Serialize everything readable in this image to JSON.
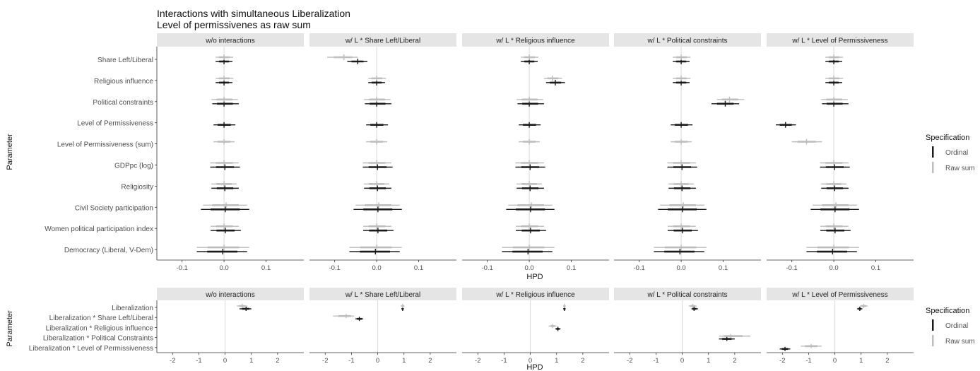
{
  "figure": {
    "title": "Interactions with simultaneous Liberalization",
    "subtitle": "Level of permissivenes as raw sum",
    "ylabel": "Parameter",
    "xlabel": "HPD"
  },
  "legend": {
    "title": "Specification",
    "items": [
      {
        "label": "Ordinal",
        "color": "#1a1a1a"
      },
      {
        "label": "Raw sum",
        "color": "#bdbdbd"
      }
    ]
  },
  "chart_data": [
    {
      "type": "interval",
      "panels": [
        "w/o interactions",
        "w/ L * Share Left/Liberal",
        "w/ L * Religious influence",
        "w/ L * Political constraints",
        "w/ L * Level of Permissiveness"
      ],
      "parameters": [
        "Share Left/Liberal",
        "Religious influence",
        "Political constraints",
        "Level of Permissiveness",
        "Level of Permissiveness (sum)",
        "GDPpc (log)",
        "Religiosity",
        "Civil Society participation",
        "Women political participation index",
        "Democracy (Liberal, V-Dem)"
      ],
      "xlim": [
        -0.16,
        0.19
      ],
      "xticks": [
        -0.1,
        0.0,
        0.1
      ],
      "xtick_labels": [
        "-0.1",
        "0.0",
        "0.1"
      ],
      "series": [
        {
          "name": "Ordinal",
          "intervals": [
            [
              [
                0,
                -0.02,
                0.02
              ],
              [
                0,
                -0.02,
                0.02
              ],
              [
                0,
                -0.028,
                0.035
              ],
              [
                0,
                -0.025,
                0.027
              ],
              null,
              [
                0.002,
                -0.033,
                0.038
              ],
              [
                0.002,
                -0.03,
                0.035
              ],
              [
                0.003,
                -0.055,
                0.06
              ],
              [
                0.003,
                -0.032,
                0.04
              ],
              [
                -0.003,
                -0.065,
                0.055
              ]
            ],
            [
              [
                -0.045,
                -0.07,
                -0.022
              ],
              [
                0,
                -0.02,
                0.02
              ],
              [
                0,
                -0.028,
                0.035
              ],
              [
                0,
                -0.025,
                0.027
              ],
              null,
              [
                0.002,
                -0.033,
                0.038
              ],
              [
                0.002,
                -0.03,
                0.035
              ],
              [
                0.003,
                -0.055,
                0.06
              ],
              [
                0.003,
                -0.032,
                0.04
              ],
              [
                -0.003,
                -0.065,
                0.055
              ]
            ],
            [
              [
                0,
                -0.02,
                0.02
              ],
              [
                0.062,
                0.04,
                0.085
              ],
              [
                0,
                -0.028,
                0.035
              ],
              [
                0,
                -0.025,
                0.027
              ],
              null,
              [
                0.002,
                -0.033,
                0.038
              ],
              [
                0.002,
                -0.03,
                0.035
              ],
              [
                0.003,
                -0.055,
                0.06
              ],
              [
                0.003,
                -0.032,
                0.04
              ],
              [
                -0.003,
                -0.065,
                0.055
              ]
            ],
            [
              [
                0,
                -0.02,
                0.02
              ],
              [
                0,
                -0.02,
                0.02
              ],
              [
                0.105,
                0.072,
                0.138
              ],
              [
                0,
                -0.025,
                0.027
              ],
              null,
              [
                0.002,
                -0.033,
                0.038
              ],
              [
                0.002,
                -0.03,
                0.035
              ],
              [
                0.003,
                -0.055,
                0.06
              ],
              [
                0.003,
                -0.032,
                0.04
              ],
              [
                -0.003,
                -0.065,
                0.055
              ]
            ],
            [
              [
                0,
                -0.02,
                0.02
              ],
              [
                0,
                -0.02,
                0.02
              ],
              [
                0,
                -0.028,
                0.035
              ],
              [
                -0.115,
                -0.138,
                -0.09
              ],
              null,
              [
                0.002,
                -0.033,
                0.038
              ],
              [
                0.002,
                -0.03,
                0.035
              ],
              [
                0.003,
                -0.055,
                0.06
              ],
              [
                0.003,
                -0.032,
                0.04
              ],
              [
                -0.003,
                -0.065,
                0.055
              ]
            ]
          ]
        },
        {
          "name": "Raw sum",
          "intervals": [
            [
              [
                0,
                -0.02,
                0.022
              ],
              [
                0,
                -0.02,
                0.022
              ],
              [
                0,
                -0.03,
                0.033
              ],
              null,
              [
                0,
                -0.025,
                0.025
              ],
              [
                0,
                -0.033,
                0.035
              ],
              [
                0,
                -0.03,
                0.03
              ],
              [
                0.005,
                -0.05,
                0.055
              ],
              [
                0,
                -0.032,
                0.035
              ],
              [
                0,
                -0.065,
                0.06
              ]
            ],
            [
              [
                -0.078,
                -0.118,
                -0.045
              ],
              [
                0,
                -0.02,
                0.022
              ],
              [
                0,
                -0.03,
                0.033
              ],
              null,
              [
                0,
                -0.025,
                0.025
              ],
              [
                0,
                -0.033,
                0.035
              ],
              [
                0,
                -0.03,
                0.03
              ],
              [
                0.005,
                -0.05,
                0.055
              ],
              [
                0,
                -0.032,
                0.035
              ],
              [
                0,
                -0.065,
                0.06
              ]
            ],
            [
              [
                0,
                -0.02,
                0.022
              ],
              [
                0.055,
                0.035,
                0.078
              ],
              [
                0,
                -0.03,
                0.033
              ],
              null,
              [
                0,
                -0.025,
                0.025
              ],
              [
                0,
                -0.033,
                0.035
              ],
              [
                0,
                -0.03,
                0.03
              ],
              [
                0.005,
                -0.05,
                0.055
              ],
              [
                0,
                -0.032,
                0.035
              ],
              [
                0,
                -0.065,
                0.06
              ]
            ],
            [
              [
                0,
                -0.02,
                0.022
              ],
              [
                0,
                -0.02,
                0.022
              ],
              [
                0.115,
                0.085,
                0.15
              ],
              null,
              [
                0,
                -0.025,
                0.025
              ],
              [
                0,
                -0.033,
                0.035
              ],
              [
                0,
                -0.03,
                0.03
              ],
              [
                0.005,
                -0.05,
                0.055
              ],
              [
                0,
                -0.032,
                0.035
              ],
              [
                0,
                -0.065,
                0.06
              ]
            ],
            [
              [
                0,
                -0.02,
                0.022
              ],
              [
                0,
                -0.02,
                0.022
              ],
              [
                0,
                -0.03,
                0.033
              ],
              null,
              [
                -0.065,
                -0.1,
                -0.028
              ],
              [
                0,
                -0.033,
                0.035
              ],
              [
                0,
                -0.03,
                0.03
              ],
              [
                0.005,
                -0.05,
                0.055
              ],
              [
                0,
                -0.032,
                0.035
              ],
              [
                0,
                -0.065,
                0.06
              ]
            ]
          ]
        }
      ]
    },
    {
      "type": "interval",
      "panels": [
        "w/o interactions",
        "w/ L * Share Left/Liberal",
        "w/ L * Religious influence",
        "w/ L * Political constraints",
        "w/ L * Level of Permissiveness"
      ],
      "parameters": [
        "Liberalization",
        "Liberalization * Share Left/Liberal",
        "Liberalization * Religious influence",
        "Liberalization * Political Constraints",
        "Liberalization * Level of Permissiveness"
      ],
      "xlim": [
        -2.6,
        3.0
      ],
      "xticks": [
        -2,
        -1,
        0,
        1,
        2
      ],
      "xtick_labels": [
        "-2",
        "-1",
        "0",
        "1",
        "2"
      ],
      "series": [
        {
          "name": "Ordinal",
          "intervals": [
            [
              [
                0.8,
                0.55,
                1.0
              ],
              null,
              null,
              null,
              null
            ],
            [
              [
                0.95,
                0.9,
                1.0
              ],
              [
                -0.7,
                -0.85,
                -0.55
              ],
              null,
              null,
              null
            ],
            [
              [
                1.3,
                1.25,
                1.35
              ],
              null,
              [
                1.05,
                0.95,
                1.15
              ],
              null,
              null
            ],
            [
              [
                0.45,
                0.35,
                0.6
              ],
              null,
              null,
              [
                1.7,
                1.4,
                2.0
              ],
              null
            ],
            [
              [
                0.95,
                0.85,
                1.05
              ],
              null,
              null,
              null,
              [
                -1.9,
                -2.1,
                -1.7
              ]
            ]
          ]
        },
        {
          "name": "Raw sum",
          "intervals": [
            [
              [
                0.65,
                0.45,
                0.85
              ],
              null,
              null,
              null,
              null
            ],
            [
              [
                0.95,
                0.88,
                1.02
              ],
              [
                -1.2,
                -1.7,
                -0.9
              ],
              null,
              null,
              null
            ],
            [
              [
                1.3,
                1.25,
                1.35
              ],
              null,
              [
                0.85,
                0.7,
                1.0
              ],
              null,
              null
            ],
            [
              [
                0.4,
                0.25,
                0.55
              ],
              null,
              null,
              [
                1.85,
                1.4,
                2.6
              ],
              null
            ],
            [
              [
                1.1,
                0.95,
                1.25
              ],
              null,
              null,
              null,
              [
                -0.9,
                -1.3,
                -0.5
              ]
            ]
          ]
        }
      ]
    }
  ]
}
